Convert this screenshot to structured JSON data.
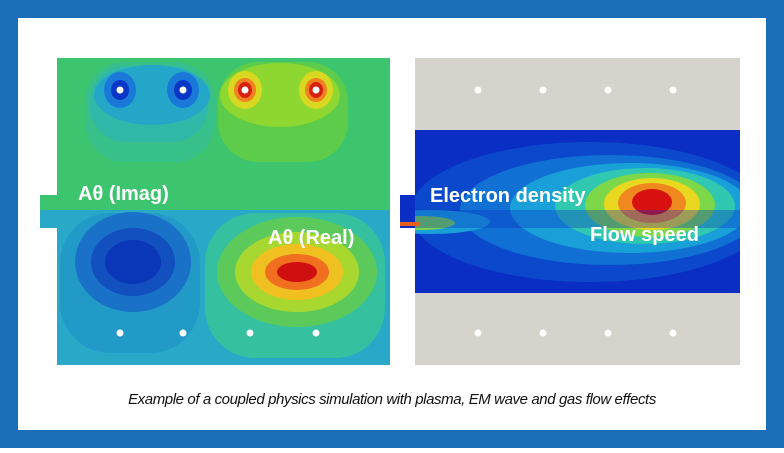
{
  "labels": {
    "imag": "Aθ (Imag)",
    "real": "Aθ (Real)",
    "electron_density": "Electron density",
    "flow_speed": "Flow speed"
  },
  "caption": "Example of a coupled physics simulation with plasma, EM wave and gas flow effects"
}
